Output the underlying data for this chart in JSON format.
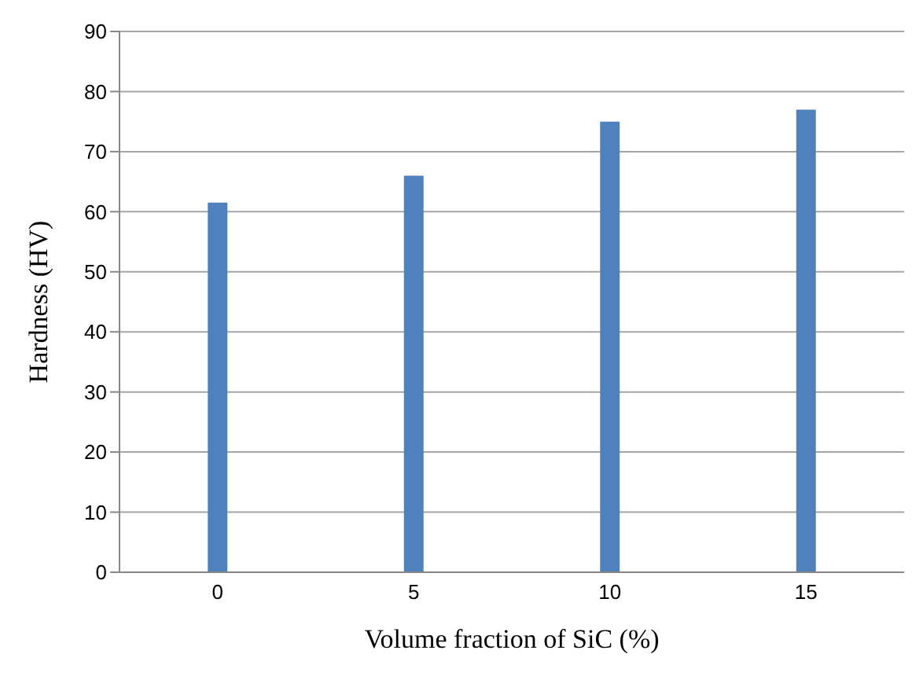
{
  "chart_data": {
    "type": "bar",
    "xlabel": "Volume fraction of SiC (%)",
    "ylabel": "Hardness (HV)",
    "categories": [
      "0",
      "5",
      "10",
      "15"
    ],
    "values": [
      61.5,
      66,
      75,
      77
    ],
    "color": "#4f81bd",
    "ylim": [
      0,
      90
    ],
    "yticks": [
      0,
      10,
      20,
      30,
      40,
      50,
      60,
      70,
      80,
      90
    ],
    "grid": "y"
  }
}
